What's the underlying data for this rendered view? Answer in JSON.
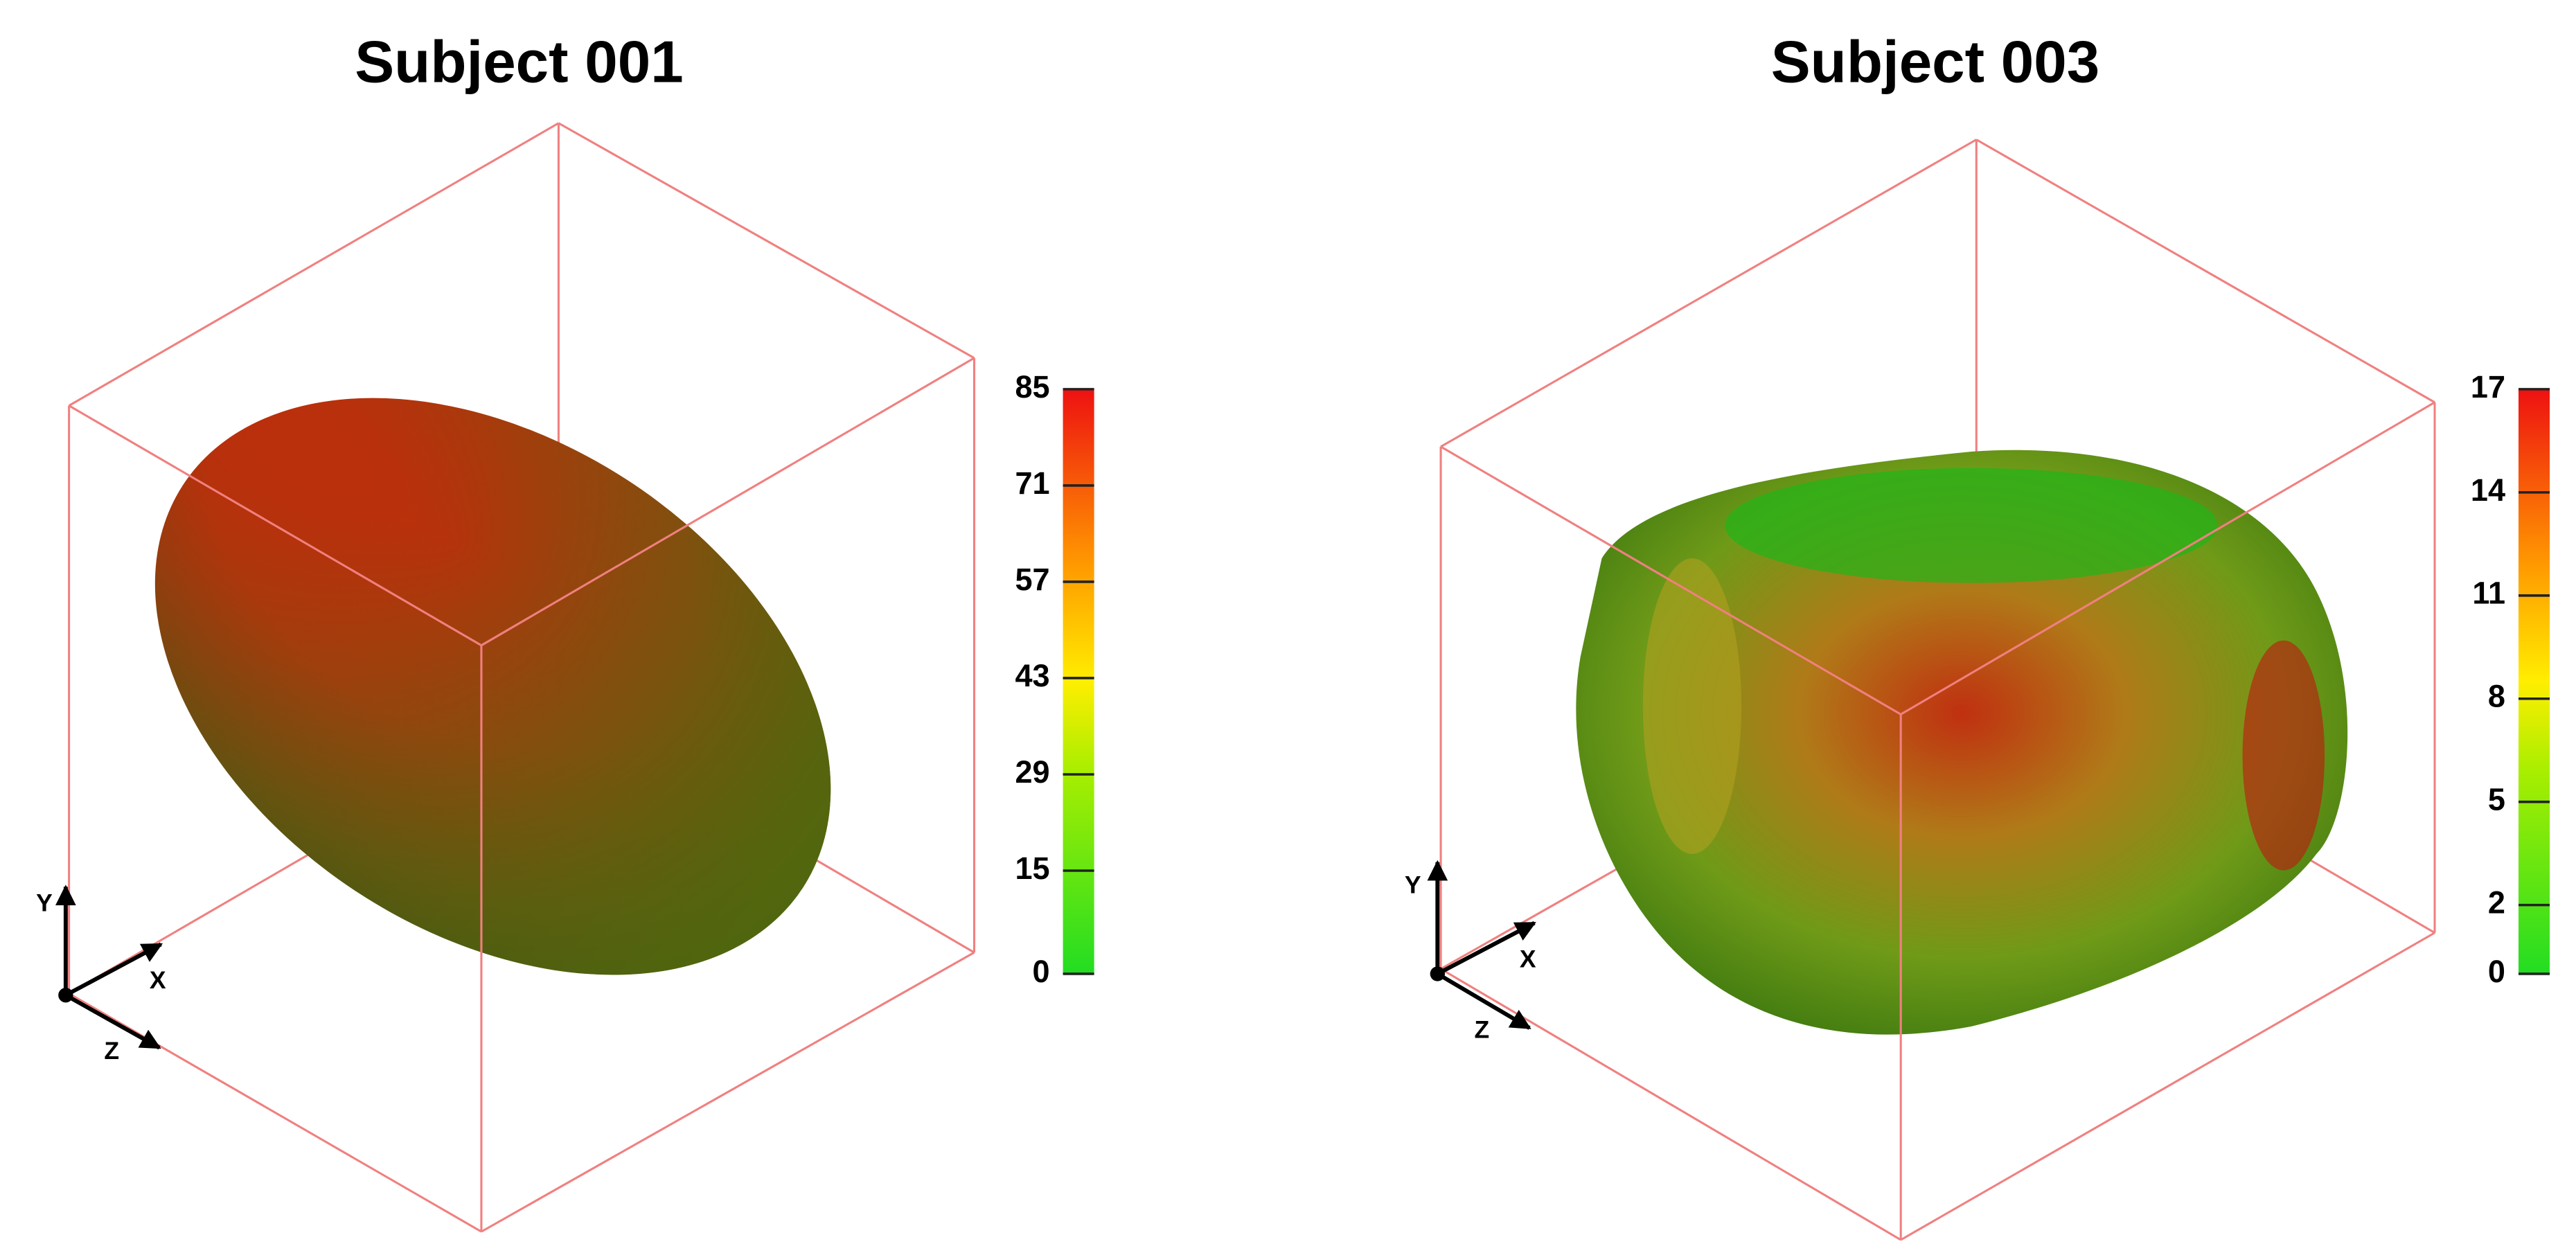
{
  "panels": [
    {
      "title": "Subject 001",
      "colorbar": {
        "lim": [
          0,
          85
        ],
        "ticks": [
          0,
          15,
          29,
          43,
          57,
          71,
          85
        ]
      },
      "axes": {
        "y": "Y",
        "x": "X",
        "z": "Z"
      }
    },
    {
      "title": "Subject 003",
      "colorbar": {
        "lim": [
          0,
          17
        ],
        "ticks": [
          0,
          2,
          5,
          8,
          11,
          14,
          17
        ]
      },
      "axes": {
        "y": "Y",
        "x": "X",
        "z": "Z"
      }
    }
  ]
}
